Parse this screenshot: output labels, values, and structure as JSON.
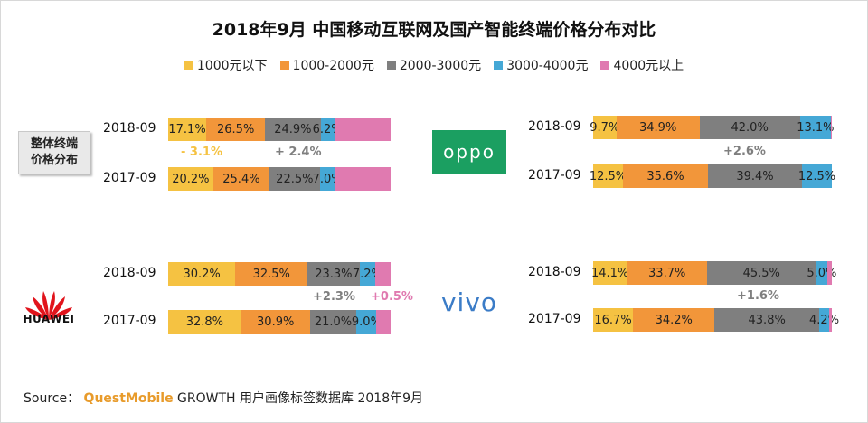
{
  "title": "2018年9月 中国移动互联网及国产智能终端价格分布对比",
  "legend": [
    {
      "label": "1000元以下",
      "color": "#f5c242"
    },
    {
      "label": "1000-2000元",
      "color": "#f2963a"
    },
    {
      "label": "2000-3000元",
      "color": "#7f7f7f"
    },
    {
      "label": "3000-4000元",
      "color": "#45a8d6"
    },
    {
      "label": "4000元以上",
      "color": "#e07ab0"
    }
  ],
  "badge": {
    "line1": "整体终端",
    "line2": "价格分布"
  },
  "brands": {
    "oppo": "oppo",
    "huawei": "HUAWEI",
    "vivo": "vivo"
  },
  "chart_data": [
    {
      "type": "bar",
      "panel": "整体终端价格分布",
      "categories": [
        "2018-09",
        "2017-09"
      ],
      "series": [
        {
          "name": "1000元以下",
          "values": [
            17.1,
            20.2
          ]
        },
        {
          "name": "1000-2000元",
          "values": [
            26.5,
            25.4
          ]
        },
        {
          "name": "2000-3000元",
          "values": [
            24.9,
            22.5
          ]
        },
        {
          "name": "3000-4000元",
          "values": [
            6.2,
            7.0
          ]
        },
        {
          "name": "4000元以上",
          "values": [
            25.3,
            24.9
          ]
        }
      ],
      "labels": [
        [
          "17.1%",
          "26.5%",
          "24.9%",
          "6.2%",
          ""
        ],
        [
          "20.2%",
          "25.4%",
          "22.5%",
          "7.0%",
          ""
        ]
      ],
      "annotations": [
        {
          "text": "- 3.1%",
          "color": "#f5c242"
        },
        {
          "text": "+ 2.4%",
          "color": "#7f7f7f"
        }
      ]
    },
    {
      "type": "bar",
      "panel": "oppo",
      "categories": [
        "2018-09",
        "2017-09"
      ],
      "series": [
        {
          "name": "1000元以下",
          "values": [
            9.7,
            12.5
          ]
        },
        {
          "name": "1000-2000元",
          "values": [
            34.9,
            35.6
          ]
        },
        {
          "name": "2000-3000元",
          "values": [
            42.0,
            39.4
          ]
        },
        {
          "name": "3000-4000元",
          "values": [
            13.1,
            12.5
          ]
        },
        {
          "name": "4000元以上",
          "values": [
            0.3,
            0.0
          ]
        }
      ],
      "labels": [
        [
          "9.7%",
          "34.9%",
          "42.0%",
          "13.1%",
          ""
        ],
        [
          "12.5%",
          "35.6%",
          "39.4%",
          "12.5%",
          ""
        ]
      ],
      "annotations": [
        {
          "text": "+2.6%",
          "color": "#7f7f7f"
        }
      ]
    },
    {
      "type": "bar",
      "panel": "HUAWEI",
      "categories": [
        "2018-09",
        "2017-09"
      ],
      "series": [
        {
          "name": "1000元以下",
          "values": [
            30.2,
            32.8
          ]
        },
        {
          "name": "1000-2000元",
          "values": [
            32.5,
            30.9
          ]
        },
        {
          "name": "2000-3000元",
          "values": [
            23.3,
            21.0
          ]
        },
        {
          "name": "3000-4000元",
          "values": [
            7.2,
            9.0
          ]
        },
        {
          "name": "4000元以上",
          "values": [
            6.8,
            6.3
          ]
        }
      ],
      "labels": [
        [
          "30.2%",
          "32.5%",
          "23.3%",
          "7.2%",
          ""
        ],
        [
          "32.8%",
          "30.9%",
          "21.0%",
          "9.0%",
          ""
        ]
      ],
      "annotations": [
        {
          "text": "+2.3%",
          "color": "#7f7f7f"
        },
        {
          "text": "+0.5%",
          "color": "#e07ab0"
        }
      ]
    },
    {
      "type": "bar",
      "panel": "vivo",
      "categories": [
        "2018-09",
        "2017-09"
      ],
      "series": [
        {
          "name": "1000元以下",
          "values": [
            14.1,
            16.7
          ]
        },
        {
          "name": "1000-2000元",
          "values": [
            33.7,
            34.2
          ]
        },
        {
          "name": "2000-3000元",
          "values": [
            45.5,
            43.8
          ]
        },
        {
          "name": "3000-4000元",
          "values": [
            5.0,
            4.2
          ]
        },
        {
          "name": "4000元以上",
          "values": [
            1.7,
            1.1
          ]
        }
      ],
      "labels": [
        [
          "14.1%",
          "33.7%",
          "45.5%",
          "5.0%",
          ""
        ],
        [
          "16.7%",
          "34.2%",
          "43.8%",
          "4.2%",
          ""
        ]
      ],
      "annotations": [
        {
          "text": "+1.6%",
          "color": "#7f7f7f"
        }
      ]
    }
  ],
  "source": {
    "prefix": "Source：",
    "brand": "QuestMobile",
    "rest": " GROWTH 用户画像标签数据库 2018年9月"
  }
}
